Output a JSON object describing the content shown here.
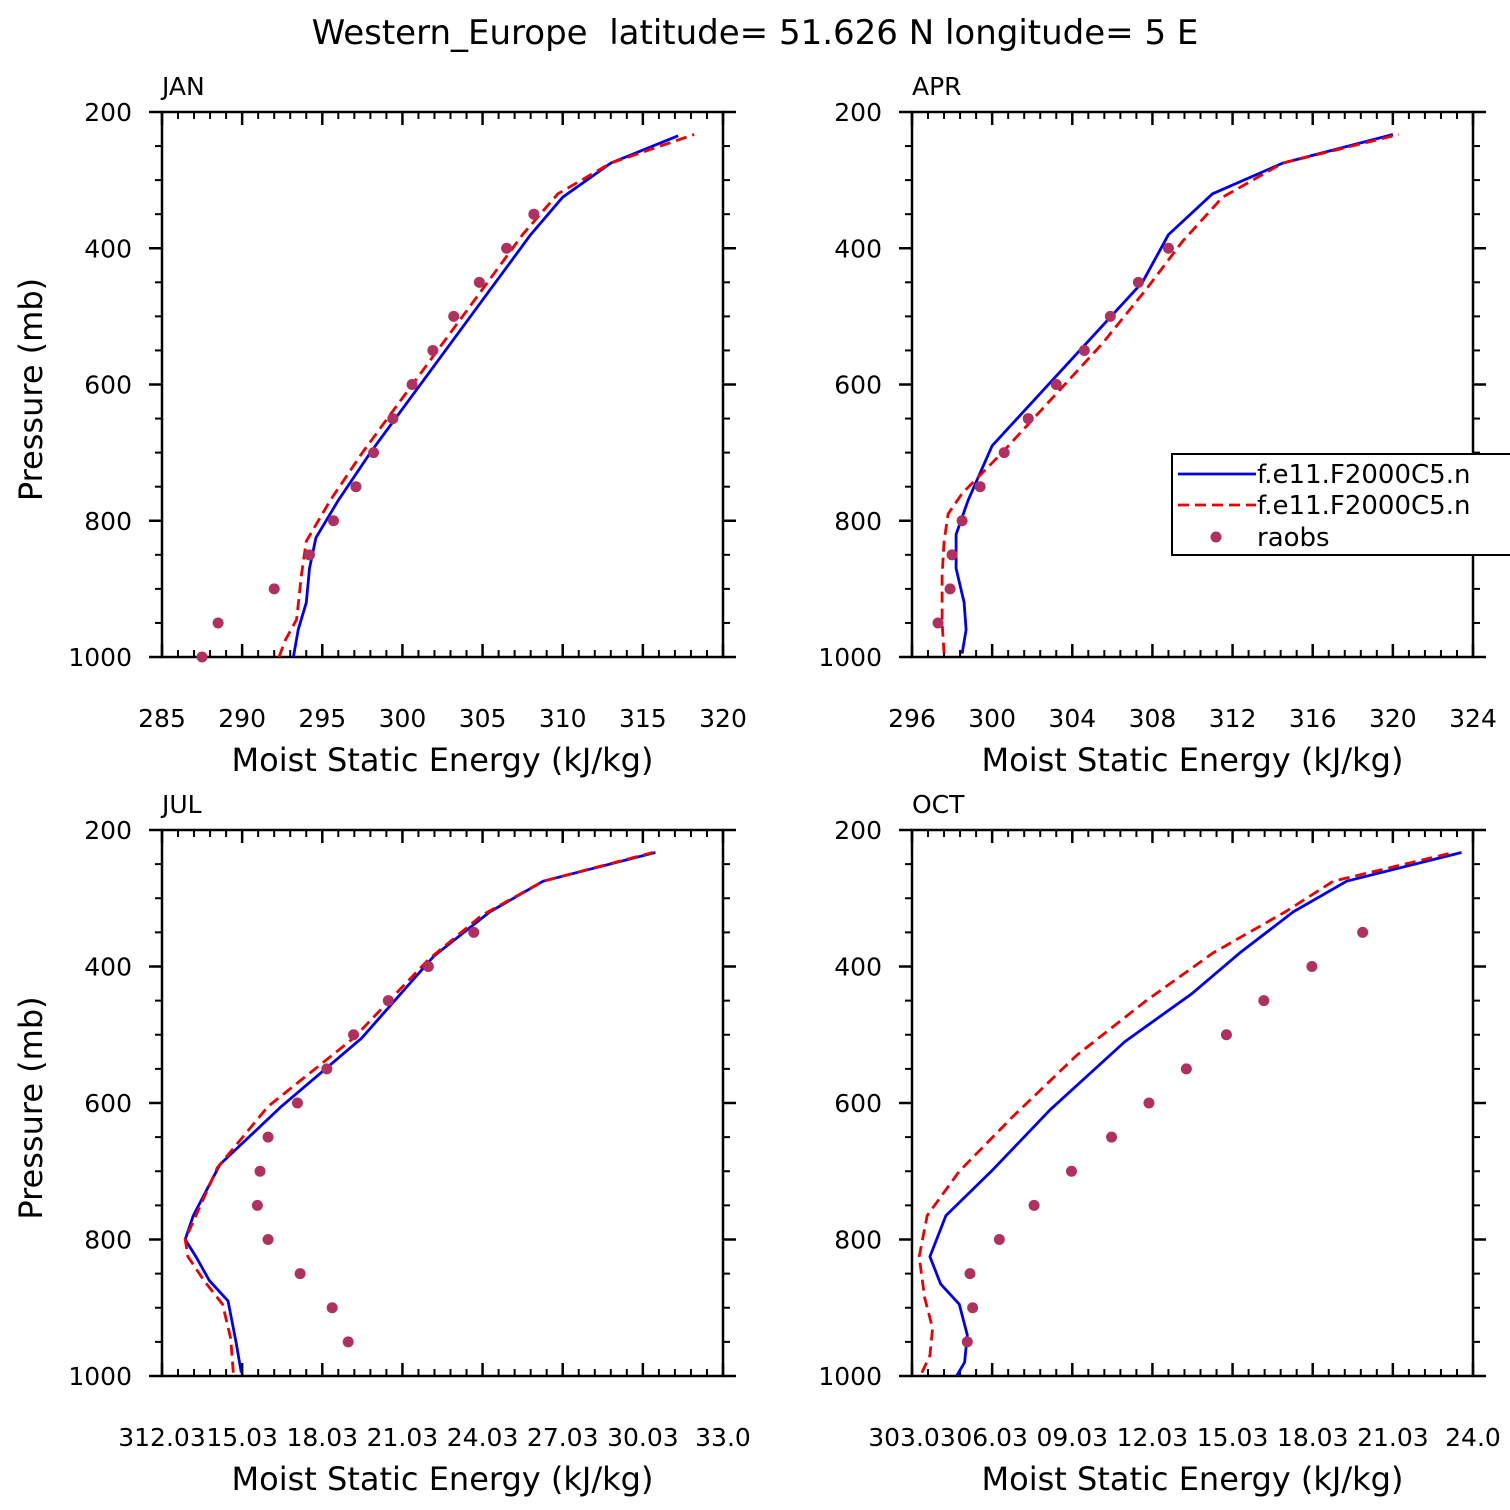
{
  "title": "Western_Europe  latitude= 51.626 N longitude= 5 E",
  "legend": {
    "entries": [
      {
        "label": "f.e11.F2000C5.n",
        "style": "solid",
        "color": "#0000ee"
      },
      {
        "label": "f.e11.F2000C5.n",
        "style": "dashed",
        "color": "#ee0000"
      },
      {
        "label": "raobs",
        "style": "marker",
        "color": "#b03060"
      }
    ]
  },
  "colors": {
    "model1": "#0000ee",
    "model2": "#ee0000",
    "obs": "#b03060"
  },
  "chart_data": [
    {
      "type": "line",
      "panel": "JAN",
      "title": "JAN",
      "xlabel": "Moist Static Energy (kJ/kg)",
      "ylabel": "Pressure (mb)",
      "xlim": [
        285,
        320
      ],
      "ylim": [
        1000,
        200
      ],
      "xticks": [
        285,
        290,
        295,
        300,
        305,
        310,
        315,
        320
      ],
      "xtick_labels": [
        "285",
        "290",
        "295",
        "300",
        "305",
        "310",
        "315",
        "320"
      ],
      "yticks": [
        200,
        400,
        600,
        800,
        1000
      ],
      "ytick_labels": [
        "200",
        "400",
        "600",
        "800",
        "1000"
      ],
      "series": [
        {
          "name": "f.e11.F2000C5.n (model 1)",
          "style": "solid",
          "x": [
            293.2,
            293.5,
            294.0,
            294.2,
            294.6,
            296.0,
            298.0,
            300.5,
            303.0,
            305.5,
            308.0,
            310.0,
            313.0,
            317.2
          ],
          "y": [
            1000,
            960,
            920,
            870,
            825,
            770,
            700,
            620,
            540,
            460,
            380,
            325,
            275,
            235
          ]
        },
        {
          "name": "f.e11.F2000C5.n (model 2)",
          "style": "dashed",
          "x": [
            292.3,
            292.7,
            293.4,
            293.7,
            294.0,
            295.5,
            297.5,
            300.0,
            302.5,
            305.0,
            307.5,
            309.7,
            313.0,
            318.2
          ],
          "y": [
            1000,
            975,
            945,
            880,
            830,
            770,
            700,
            620,
            540,
            460,
            380,
            320,
            275,
            233
          ]
        },
        {
          "name": "raobs",
          "style": "marker",
          "x": [
            287.5,
            288.5,
            292.0,
            294.2,
            295.7,
            297.1,
            298.2,
            299.4,
            300.6,
            301.9,
            303.2,
            304.8,
            306.5,
            308.2
          ],
          "y": [
            1000,
            950,
            900,
            850,
            800,
            750,
            700,
            650,
            600,
            550,
            500,
            450,
            400,
            350
          ]
        }
      ]
    },
    {
      "type": "line",
      "panel": "APR",
      "title": "APR",
      "xlabel": "Moist Static Energy (kJ/kg)",
      "ylabel": "",
      "xlim": [
        296,
        324
      ],
      "ylim": [
        1000,
        200
      ],
      "xticks": [
        296,
        300,
        304,
        308,
        312,
        316,
        320,
        324
      ],
      "xtick_labels": [
        "296",
        "300",
        "304",
        "308",
        "312",
        "316",
        "320",
        "324"
      ],
      "yticks": [
        200,
        400,
        600,
        800,
        1000
      ],
      "ytick_labels": [
        "200",
        "400",
        "600",
        "800",
        "1000"
      ],
      "series": [
        {
          "name": "f.e11.F2000C5.n (model 1)",
          "style": "solid",
          "x": [
            298.5,
            298.7,
            298.6,
            298.2,
            298.2,
            298.8,
            300.0,
            302.5,
            305.0,
            307.5,
            308.8,
            311.0,
            314.5,
            320.0
          ],
          "y": [
            995,
            960,
            920,
            870,
            820,
            770,
            690,
            610,
            530,
            450,
            380,
            320,
            275,
            233
          ]
        },
        {
          "name": "f.e11.F2000C5.n (model 2)",
          "style": "dashed",
          "x": [
            297.6,
            297.5,
            297.5,
            297.6,
            297.8,
            298.5,
            300.5,
            303.0,
            305.5,
            307.7,
            309.5,
            311.5,
            314.5,
            320.3
          ],
          "y": [
            995,
            950,
            880,
            830,
            790,
            760,
            700,
            620,
            540,
            460,
            390,
            325,
            275,
            233
          ]
        },
        {
          "name": "raobs",
          "style": "marker",
          "x": [
            297.3,
            297.9,
            298.0,
            298.5,
            299.4,
            300.6,
            301.8,
            303.2,
            304.6,
            305.9,
            307.3,
            308.8
          ],
          "y": [
            950,
            900,
            850,
            800,
            750,
            700,
            650,
            600,
            550,
            500,
            450,
            400
          ]
        }
      ]
    },
    {
      "type": "line",
      "panel": "JUL",
      "title": "JUL",
      "xlabel": "Moist Static Energy (kJ/kg)",
      "ylabel": "Pressure (mb)",
      "xlim": [
        312.03,
        333.03
      ],
      "ylim": [
        1000,
        200
      ],
      "xticks": [
        312.03,
        315.03,
        318.03,
        321.03,
        324.03,
        327.03,
        330.03,
        333.03
      ],
      "xtick_labels": [
        "312.03",
        "15.03",
        "18.03",
        "21.03",
        "24.03",
        "27.03",
        "30.03",
        "33.0"
      ],
      "yticks": [
        200,
        400,
        600,
        800,
        1000
      ],
      "ytick_labels": [
        "200",
        "400",
        "600",
        "800",
        "1000"
      ],
      "series": [
        {
          "name": "f.e11.F2000C5.n (model 1)",
          "style": "solid",
          "x": [
            315.0,
            314.8,
            314.5,
            313.8,
            313.3,
            312.9,
            313.2,
            314.2,
            316.5,
            319.5,
            322.2,
            324.3,
            326.3,
            330.5
          ],
          "y": [
            995,
            950,
            890,
            860,
            825,
            800,
            765,
            690,
            605,
            505,
            385,
            320,
            275,
            233
          ]
        },
        {
          "name": "f.e11.F2000C5.n (model 2)",
          "style": "dashed",
          "x": [
            314.7,
            314.6,
            314.3,
            313.6,
            313.0,
            312.9,
            313.3,
            314.1,
            316.0,
            319.2,
            322.0,
            324.0,
            326.3,
            330.4
          ],
          "y": [
            995,
            945,
            895,
            860,
            825,
            800,
            765,
            695,
            605,
            505,
            390,
            325,
            275,
            233
          ]
        },
        {
          "name": "raobs",
          "style": "marker",
          "x": [
            319.0,
            318.4,
            317.2,
            316.0,
            315.6,
            315.7,
            316.0,
            317.1,
            318.2,
            319.2,
            320.5,
            322.0,
            323.7
          ],
          "y": [
            950,
            900,
            850,
            800,
            750,
            700,
            650,
            600,
            550,
            500,
            450,
            400,
            350
          ]
        }
      ]
    },
    {
      "type": "line",
      "panel": "OCT",
      "title": "OCT",
      "xlabel": "Moist Static Energy (kJ/kg)",
      "ylabel": "",
      "xlim": [
        303.03,
        324.03
      ],
      "ylim": [
        1000,
        200
      ],
      "xticks": [
        303.03,
        306.03,
        309.03,
        312.03,
        315.03,
        318.03,
        321.03,
        324.03
      ],
      "xtick_labels": [
        "303.03",
        "06.03",
        "09.03",
        "12.03",
        "15.03",
        "18.03",
        "21.03",
        "24.0"
      ],
      "yticks": [
        200,
        400,
        600,
        800,
        1000
      ],
      "ytick_labels": [
        "200",
        "400",
        "600",
        "800",
        "1000"
      ],
      "series": [
        {
          "name": "f.e11.F2000C5.n (model 1)",
          "style": "solid",
          "x": [
            304.7,
            305.0,
            305.1,
            304.8,
            304.1,
            303.7,
            304.3,
            306.0,
            308.2,
            311.0,
            313.5,
            315.3,
            317.3,
            319.3,
            323.6
          ],
          "y": [
            1000,
            980,
            940,
            895,
            865,
            825,
            765,
            700,
            610,
            510,
            440,
            380,
            320,
            275,
            233
          ]
        },
        {
          "name": "f.e11.F2000C5.n (model 2)",
          "style": "dashed",
          "x": [
            303.4,
            303.7,
            303.8,
            303.5,
            303.3,
            303.6,
            304.8,
            306.8,
            309.2,
            311.8,
            314.3,
            317.0,
            318.8,
            323.3
          ],
          "y": [
            995,
            970,
            930,
            885,
            825,
            765,
            700,
            620,
            530,
            450,
            380,
            320,
            275,
            233
          ]
        },
        {
          "name": "raobs",
          "style": "marker",
          "x": [
            305.1,
            305.3,
            305.2,
            306.3,
            307.6,
            309.0,
            310.5,
            311.9,
            313.3,
            314.8,
            316.2,
            318.0,
            319.9
          ],
          "y": [
            950,
            900,
            850,
            800,
            750,
            700,
            650,
            600,
            550,
            500,
            450,
            400,
            350
          ]
        }
      ]
    }
  ]
}
